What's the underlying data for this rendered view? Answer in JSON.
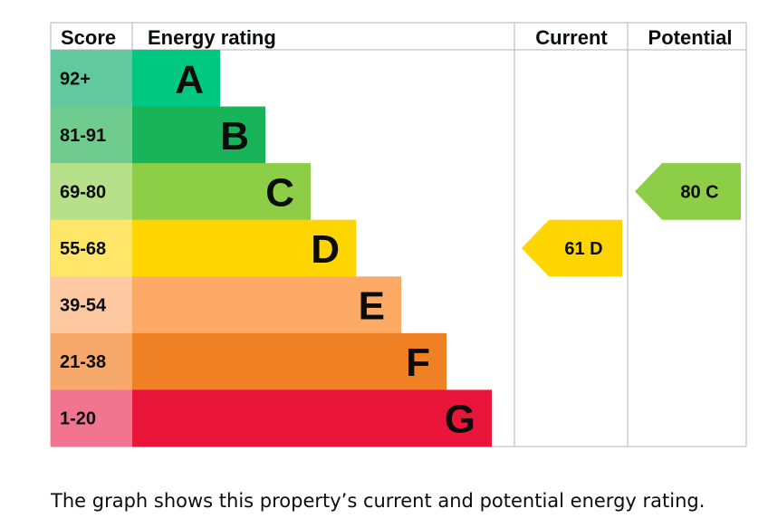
{
  "chart_data": {
    "type": "table",
    "headers": {
      "score": "Score",
      "rating": "Energy rating",
      "current": "Current",
      "potential": "Potential"
    },
    "bands": [
      {
        "letter": "A",
        "score_range": "92+",
        "bar_color": "#00c781",
        "score_color": "#62c99e"
      },
      {
        "letter": "B",
        "score_range": "81-91",
        "bar_color": "#19b459",
        "score_color": "#6fcb8e"
      },
      {
        "letter": "C",
        "score_range": "69-80",
        "bar_color": "#8dce46",
        "score_color": "#b7e08a"
      },
      {
        "letter": "D",
        "score_range": "55-68",
        "bar_color": "#ffd500",
        "score_color": "#ffe668"
      },
      {
        "letter": "E",
        "score_range": "39-54",
        "bar_color": "#fcaa65",
        "score_color": "#fec9a1"
      },
      {
        "letter": "F",
        "score_range": "21-38",
        "bar_color": "#ef8023",
        "score_color": "#f6a96a"
      },
      {
        "letter": "G",
        "score_range": "1-20",
        "bar_color": "#e9153b",
        "score_color": "#f27590"
      }
    ],
    "current": {
      "value": 61,
      "band": "D",
      "label": "61  D",
      "color": "#ffd500"
    },
    "potential": {
      "value": 80,
      "band": "C",
      "label": "80  C",
      "color": "#8dce46"
    }
  },
  "caption": "The graph shows this property’s current and potential energy rating."
}
